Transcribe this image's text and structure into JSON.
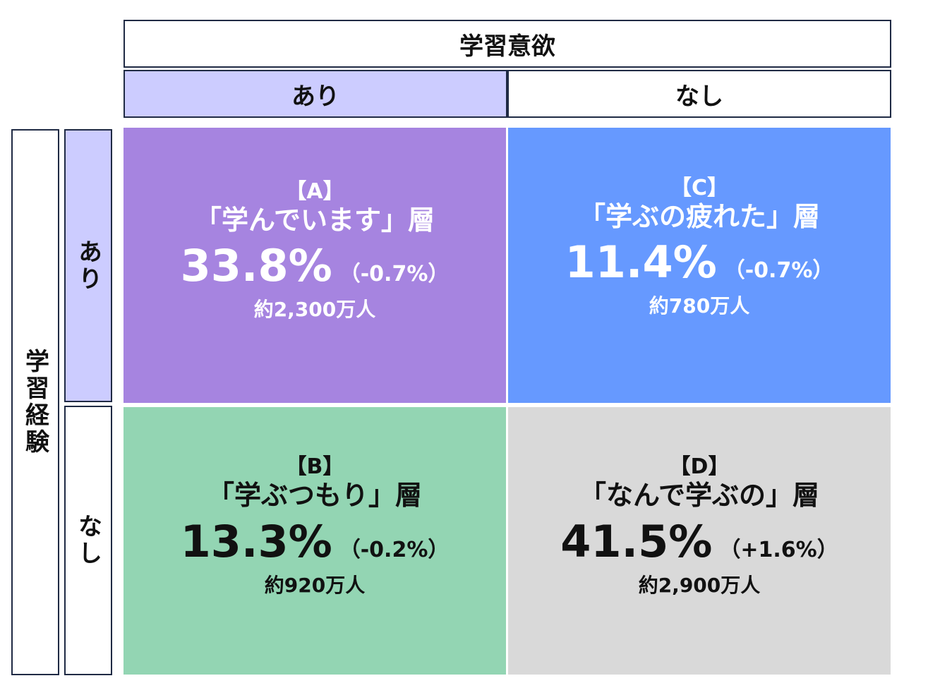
{
  "header": {
    "motivation_title": "学習意欲",
    "motivation_yes": "あり",
    "motivation_no": "なし"
  },
  "side": {
    "experience_title": "学習経験",
    "experience_yes": "あり",
    "experience_no": "なし"
  },
  "colors": {
    "header_yes_bg": "#ccccff",
    "quad_a": "#a684e0",
    "quad_b": "#93d5b3",
    "quad_c": "#6699ff",
    "quad_d": "#d9d9d9",
    "border": "#1f2a44"
  },
  "quadrants": {
    "a": {
      "tag": "【A】",
      "name": "「学んでいます」層",
      "pct": "33.8%",
      "delta": "（-0.7%）",
      "people": "約2,300万人"
    },
    "c": {
      "tag": "【C】",
      "name": "「学ぶの疲れた」層",
      "pct": "11.4%",
      "delta": "（-0.7%）",
      "people": "約780万人"
    },
    "b": {
      "tag": "【B】",
      "name": "「学ぶつもり」層",
      "pct": "13.3%",
      "delta": "（-0.2%）",
      "people": "約920万人"
    },
    "d": {
      "tag": "【D】",
      "name": "「なんで学ぶの」層",
      "pct": "41.5%",
      "delta": "（+1.6%）",
      "people": "約2,900万人"
    }
  }
}
